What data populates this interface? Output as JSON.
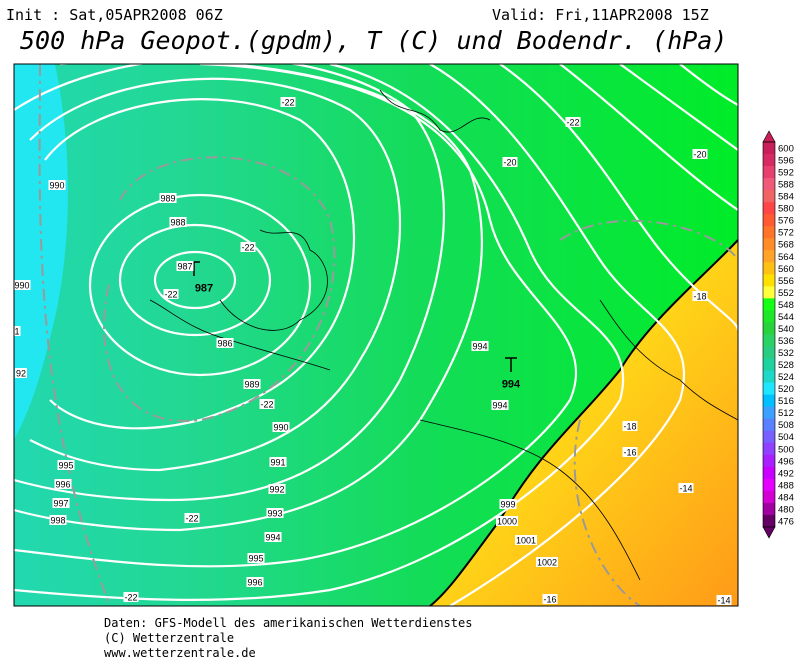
{
  "header": {
    "init": "Init : Sat,05APR2008 06Z",
    "valid": "Valid: Fri,11APR2008 15Z",
    "title": "500 hPa Geopot.(gpdm), T (C) und Bodendr. (hPa)"
  },
  "map": {
    "labels": [
      "990",
      "989",
      "988",
      "987",
      "987",
      "-22",
      "-22",
      "-22",
      "986",
      "989",
      "-22",
      "990",
      "991",
      "992",
      "993",
      "994",
      "995",
      "996",
      "995",
      "996",
      "997",
      "998",
      "-22",
      "-22",
      "990",
      "1",
      "92",
      "-22",
      "-20",
      "-20",
      "-18",
      "994",
      "994",
      "994",
      "-18",
      "-16",
      "-14",
      "999",
      "1000",
      "1001",
      "1002",
      "-16",
      "-14"
    ]
  },
  "colorbar": {
    "items": [
      {
        "label": "600",
        "color": "#c81e5a"
      },
      {
        "label": "596",
        "color": "#d82a62"
      },
      {
        "label": "592",
        "color": "#e8406e"
      },
      {
        "label": "588",
        "color": "#f05a78"
      },
      {
        "label": "584",
        "color": "#f06464"
      },
      {
        "label": "580",
        "color": "#ff4646"
      },
      {
        "label": "576",
        "color": "#ff5a32"
      },
      {
        "label": "572",
        "color": "#ff7428"
      },
      {
        "label": "568",
        "color": "#ff8c28"
      },
      {
        "label": "564",
        "color": "#ffa428"
      },
      {
        "label": "560",
        "color": "#ffc014"
      },
      {
        "label": "556",
        "color": "#ffe000"
      },
      {
        "label": "552",
        "color": "#ffff3c"
      },
      {
        "label": "548",
        "color": "#14ff14"
      },
      {
        "label": "544",
        "color": "#1ee628"
      },
      {
        "label": "540",
        "color": "#28d23c"
      },
      {
        "label": "536",
        "color": "#28d264"
      },
      {
        "label": "532",
        "color": "#28cd82"
      },
      {
        "label": "528",
        "color": "#1ed2a0"
      },
      {
        "label": "524",
        "color": "#1ed8c8"
      },
      {
        "label": "520",
        "color": "#1ee6ff"
      },
      {
        "label": "516",
        "color": "#00c0ff"
      },
      {
        "label": "512",
        "color": "#3ca0ff"
      },
      {
        "label": "508",
        "color": "#5a80ff"
      },
      {
        "label": "504",
        "color": "#7860ff"
      },
      {
        "label": "500",
        "color": "#9040ff"
      },
      {
        "label": "496",
        "color": "#a820ff"
      },
      {
        "label": "492",
        "color": "#c800ff"
      },
      {
        "label": "488",
        "color": "#e600ff"
      },
      {
        "label": "484",
        "color": "#d200d2"
      },
      {
        "label": "480",
        "color": "#a000a0"
      },
      {
        "label": "476",
        "color": "#640064"
      }
    ]
  },
  "footer": {
    "line1": "Daten: GFS-Modell des amerikanischen Wetterdienstes",
    "line2": "(C) Wetterzentrale",
    "line3": "www.wetterzentrale.de"
  }
}
